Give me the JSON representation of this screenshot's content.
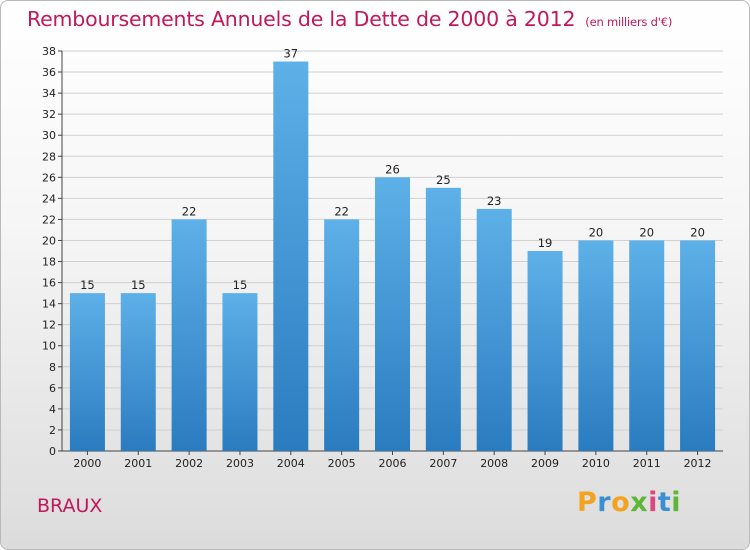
{
  "title": "Remboursements Annuels de la Dette de 2000 à 2012",
  "unit_note": "(en milliers d'€)",
  "commune": "BRAUX",
  "logo": {
    "text": "Proxiti",
    "letter_colors": [
      "#f2a322",
      "#3a8fd3",
      "#f2a322",
      "#5fb536",
      "#e0457b",
      "#3a8fd3",
      "#5fb536"
    ]
  },
  "colors": {
    "title": "#c2185b",
    "bar_top": "#5eb0e8",
    "bar_bottom": "#2a7cc0",
    "grid": "#d0d0d0"
  },
  "chart_data": {
    "type": "bar",
    "title": "Remboursements Annuels de la Dette de 2000 à 2012",
    "xlabel": "",
    "ylabel": "",
    "categories": [
      "2000",
      "2001",
      "2002",
      "2003",
      "2004",
      "2005",
      "2006",
      "2007",
      "2008",
      "2009",
      "2010",
      "2011",
      "2012"
    ],
    "values": [
      15,
      15,
      22,
      15,
      37,
      22,
      26,
      25,
      23,
      19,
      20,
      20,
      20
    ],
    "data_labels": [
      "15",
      "15",
      "22",
      "15",
      "37",
      "22",
      "26",
      "25",
      "23",
      "19",
      "20",
      "20",
      "20"
    ],
    "y_ticks": [
      0,
      2,
      4,
      6,
      8,
      10,
      12,
      14,
      16,
      18,
      20,
      22,
      24,
      26,
      28,
      30,
      32,
      34,
      36,
      38
    ],
    "ylim": [
      0,
      38
    ],
    "grid": true,
    "legend": "none"
  }
}
